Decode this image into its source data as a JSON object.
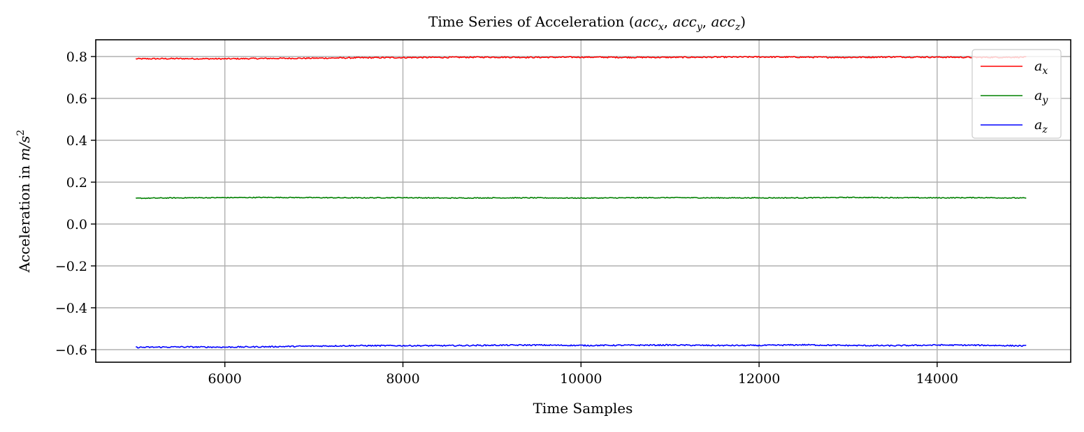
{
  "chart_data": {
    "type": "line",
    "title_prefix": "Time Series of Acceleration ",
    "title_math": "(acc",
    "title_parts": [
      {
        "text": "(",
        "italic": false
      },
      {
        "text": "acc",
        "italic": true
      },
      {
        "text": "x",
        "italic": true,
        "sub": true
      },
      {
        "text": ", ",
        "italic": false
      },
      {
        "text": "acc",
        "italic": true
      },
      {
        "text": "y",
        "italic": true,
        "sub": true
      },
      {
        "text": ", ",
        "italic": false
      },
      {
        "text": "acc",
        "italic": true
      },
      {
        "text": "z",
        "italic": true,
        "sub": true
      },
      {
        "text": ")",
        "italic": false
      }
    ],
    "xlabel": "Time Samples",
    "ylabel_prefix": "Acceleration in ",
    "ylabel_math": "m/s",
    "ylabel_sup": "2",
    "xlim": [
      4550,
      15500
    ],
    "ylim": [
      -0.66,
      0.88
    ],
    "xticks": [
      6000,
      8000,
      10000,
      12000,
      14000
    ],
    "xtick_labels": [
      "6000",
      "8000",
      "10000",
      "12000",
      "14000"
    ],
    "yticks": [
      0.8,
      0.6,
      0.4,
      0.2,
      0.0,
      -0.2,
      -0.4,
      -0.6
    ],
    "ytick_labels": [
      "0.8",
      "0.6",
      "0.4",
      "0.2",
      "0.0",
      "−0.2",
      "−0.4",
      "−0.6"
    ],
    "grid": true,
    "legend_position": "top-right",
    "series": [
      {
        "name": "a",
        "sub": "x",
        "color": "#ff0000",
        "x_start": 5000,
        "x_end": 15000,
        "mean": 0.795,
        "noise": 0.003,
        "profile": [
          0.789,
          0.79,
          0.789,
          0.791,
          0.792,
          0.794,
          0.795,
          0.796,
          0.797,
          0.796,
          0.797,
          0.796,
          0.796,
          0.797,
          0.798,
          0.797,
          0.796,
          0.798,
          0.797,
          0.796,
          0.797
        ]
      },
      {
        "name": "a",
        "sub": "y",
        "color": "#008000",
        "x_start": 5000,
        "x_end": 15000,
        "mean": 0.125,
        "noise": 0.002,
        "profile": [
          0.123,
          0.125,
          0.126,
          0.127,
          0.126,
          0.125,
          0.126,
          0.124,
          0.125,
          0.125,
          0.124,
          0.125,
          0.126,
          0.125,
          0.125,
          0.125,
          0.127,
          0.126,
          0.125,
          0.126,
          0.124
        ]
      },
      {
        "name": "a",
        "sub": "z",
        "color": "#0000ff",
        "x_start": 5000,
        "x_end": 15000,
        "mean": -0.582,
        "noise": 0.003,
        "profile": [
          -0.589,
          -0.587,
          -0.588,
          -0.586,
          -0.583,
          -0.581,
          -0.581,
          -0.581,
          -0.579,
          -0.578,
          -0.58,
          -0.579,
          -0.578,
          -0.58,
          -0.58,
          -0.577,
          -0.58,
          -0.581,
          -0.578,
          -0.579,
          -0.582
        ]
      }
    ]
  }
}
